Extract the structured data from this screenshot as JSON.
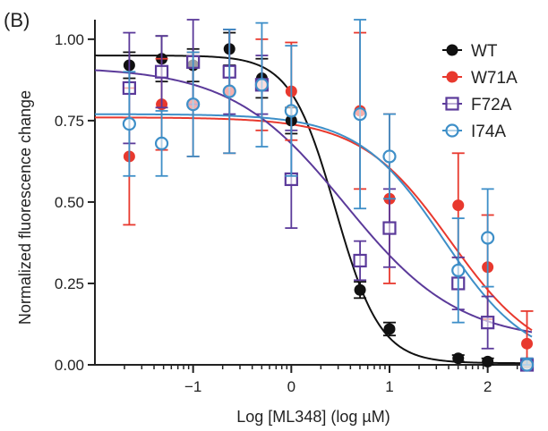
{
  "chart_data": {
    "type": "scatter",
    "panel_label": "(B)",
    "xlabel": "Log [ML348] (log µM)",
    "ylabel": "Normalized fluorescence change",
    "xlim": [
      -2.0,
      2.45
    ],
    "ylim": [
      0.0,
      1.06
    ],
    "xticks": [
      -1,
      0,
      1,
      2
    ],
    "xtick_labels": [
      "−1",
      "0",
      "1",
      "2"
    ],
    "yticks": [
      0.0,
      0.25,
      0.5,
      0.75,
      1.0
    ],
    "ytick_labels": [
      "0.00",
      "0.25",
      "0.50",
      "0.75",
      "1.00"
    ],
    "legend_position": "top-right",
    "grid": false,
    "series": [
      {
        "name": "WT",
        "color": "#111111",
        "marker": "circle-filled",
        "x": [
          -1.65,
          -1.32,
          -1.0,
          -0.63,
          -0.3,
          0.0,
          0.7,
          1.0,
          1.7,
          2.0,
          2.4
        ],
        "y": [
          0.92,
          0.94,
          0.92,
          0.97,
          0.88,
          0.75,
          0.23,
          0.11,
          0.02,
          0.01,
          0.005
        ],
        "err": [
          0.04,
          0.07,
          0.05,
          0.05,
          0.06,
          0.04,
          0.025,
          0.02,
          0.01,
          0.01,
          0.01
        ],
        "fit": {
          "top": 0.95,
          "bottom": 0.005,
          "logEC50": 0.45,
          "hill": 1.9
        }
      },
      {
        "name": "W71A",
        "color": "#e8392e",
        "marker": "circle-filled",
        "x": [
          -1.65,
          -1.32,
          -1.0,
          -0.63,
          -0.3,
          0.0,
          0.7,
          1.0,
          1.7,
          2.0,
          2.4
        ],
        "y": [
          0.64,
          0.8,
          0.8,
          0.84,
          0.86,
          0.84,
          0.78,
          0.51,
          0.49,
          0.3,
          0.065
        ],
        "err": [
          0.21,
          0.14,
          0.16,
          0.19,
          0.14,
          0.15,
          0.24,
          0.26,
          0.16,
          0.16,
          0.1
        ],
        "fit": {
          "top": 0.76,
          "bottom": 0.0,
          "logEC50": 1.62,
          "hill": 0.95
        }
      },
      {
        "name": "F72A",
        "color": "#5b3a9a",
        "marker": "square-open",
        "x": [
          -1.65,
          -1.32,
          -1.0,
          -0.63,
          -0.3,
          0.0,
          0.7,
          1.0,
          1.7,
          2.0,
          2.4
        ],
        "y": [
          0.85,
          0.9,
          0.93,
          0.9,
          0.86,
          0.57,
          0.32,
          0.42,
          0.25,
          0.13,
          0.0
        ],
        "err": [
          0.17,
          0.11,
          0.13,
          0.13,
          0.09,
          0.15,
          0.06,
          0.12,
          0.08,
          0.08,
          0.02
        ],
        "fit": {
          "top": 0.915,
          "bottom": 0.07,
          "logEC50": 0.55,
          "hill": 0.75
        }
      },
      {
        "name": "I74A",
        "color": "#3e8fc8",
        "marker": "circle-open",
        "x": [
          -1.65,
          -1.32,
          -1.0,
          -0.63,
          -0.3,
          0.0,
          0.7,
          1.0,
          1.7,
          2.0,
          2.4
        ],
        "y": [
          0.74,
          0.68,
          0.8,
          0.84,
          0.86,
          0.78,
          0.77,
          0.64,
          0.29,
          0.39,
          0.0
        ],
        "err": [
          0.16,
          0.1,
          0.16,
          0.19,
          0.19,
          0.2,
          0.29,
          0.13,
          0.16,
          0.15,
          0.02
        ],
        "fit": {
          "top": 0.77,
          "bottom": 0.0,
          "logEC50": 1.55,
          "hill": 1.0
        }
      }
    ]
  }
}
